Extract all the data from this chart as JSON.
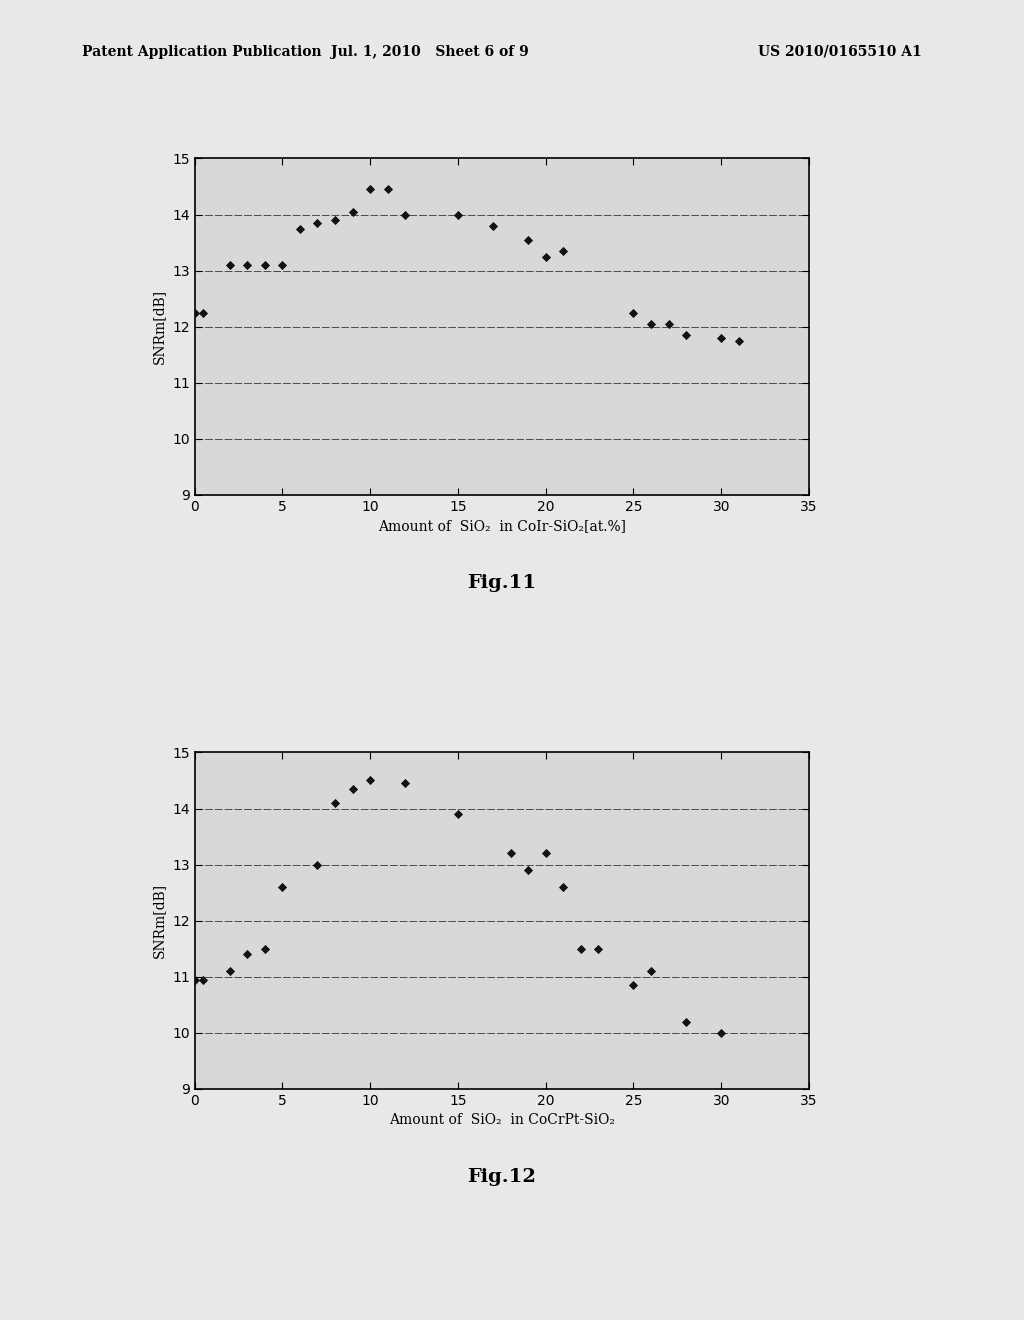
{
  "fig11": {
    "title": "Fig.11",
    "xlabel": "Amount of  SiO₂  in CoIr-SiO₂[at.%]",
    "ylabel": "SNRm[dB]",
    "xlim": [
      0,
      35
    ],
    "ylim": [
      9,
      15
    ],
    "xticks": [
      0,
      5,
      10,
      15,
      20,
      25,
      30,
      35
    ],
    "yticks": [
      9,
      10,
      11,
      12,
      13,
      14,
      15
    ],
    "data_x": [
      0,
      0.5,
      2,
      3,
      4,
      5,
      6,
      7,
      8,
      9,
      10,
      11,
      12,
      15,
      17,
      19,
      20,
      21,
      25,
      26,
      27,
      28,
      30,
      31
    ],
    "data_y": [
      12.25,
      12.25,
      13.1,
      13.1,
      13.1,
      13.1,
      13.75,
      13.85,
      13.9,
      14.05,
      14.45,
      14.45,
      14.0,
      14.0,
      13.8,
      13.55,
      13.25,
      13.35,
      12.25,
      12.05,
      12.05,
      11.85,
      11.8,
      11.75
    ]
  },
  "fig12": {
    "title": "Fig.12",
    "xlabel": "Amount of  SiO₂  in CoCrPt-SiO₂",
    "ylabel": "SNRm[dB]",
    "xlim": [
      0,
      35
    ],
    "ylim": [
      9,
      15
    ],
    "xticks": [
      0,
      5,
      10,
      15,
      20,
      25,
      30,
      35
    ],
    "yticks": [
      9,
      10,
      11,
      12,
      13,
      14,
      15
    ],
    "data_x": [
      0,
      0.5,
      2,
      3,
      4,
      5,
      7,
      8,
      9,
      10,
      12,
      15,
      18,
      19,
      20,
      21,
      22,
      23,
      25,
      26,
      28,
      30
    ],
    "data_y": [
      10.95,
      10.95,
      11.1,
      11.4,
      11.5,
      12.6,
      13.0,
      14.1,
      14.35,
      14.5,
      14.45,
      13.9,
      13.2,
      12.9,
      13.2,
      12.6,
      11.5,
      11.5,
      10.85,
      11.1,
      10.2,
      10.0
    ]
  },
  "header_left": "Patent Application Publication",
  "header_mid": "Jul. 1, 2010   Sheet 6 of 9",
  "header_right": "US 2010/0165510 A1",
  "bg_color": "#e8e8e8",
  "plot_bg": "#d8d8d8",
  "marker_color": "#111111",
  "refline_color": "#333333",
  "title_fontsize": 14,
  "axis_fontsize": 10,
  "tick_fontsize": 10,
  "header_fontsize": 10
}
